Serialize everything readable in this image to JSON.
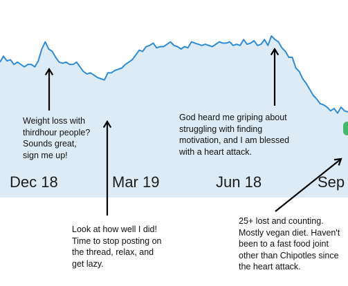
{
  "chart_data": {
    "type": "area",
    "title": "",
    "xlabel": "",
    "ylabel": "",
    "x_tick_labels": [
      "Dec 18",
      "Mar 19",
      "Jun 18",
      "Sep"
    ],
    "x": [
      0,
      5,
      10,
      15,
      20,
      25,
      30,
      35,
      40,
      45,
      50,
      55,
      60,
      65,
      70,
      75,
      80,
      85,
      90,
      95,
      100,
      105,
      110,
      115,
      120,
      125,
      130,
      135,
      140,
      145,
      150,
      155,
      160,
      165,
      170,
      175,
      180,
      185,
      190,
      195,
      200,
      205,
      210,
      215,
      220,
      225,
      230,
      235,
      240,
      245,
      250,
      255,
      260,
      265,
      270,
      275,
      280,
      285,
      290,
      295,
      300,
      305,
      310,
      315,
      320,
      325,
      330,
      335,
      340,
      345,
      350,
      355,
      360,
      365,
      370,
      375,
      380,
      385,
      390,
      395,
      400,
      405,
      410,
      415,
      420,
      425,
      430,
      435,
      440,
      445,
      450,
      455,
      460,
      465,
      470,
      475,
      480,
      485,
      490,
      495,
      500
    ],
    "y": [
      71,
      76,
      72,
      73,
      69,
      71,
      69,
      67,
      69,
      69,
      67,
      72,
      82,
      88,
      82,
      80,
      75,
      71,
      70,
      71,
      69,
      69,
      71,
      67,
      63,
      61,
      62,
      60,
      58,
      57,
      56,
      62,
      62,
      64,
      65,
      66,
      69,
      71,
      73,
      77,
      81,
      80,
      84,
      85,
      87,
      83,
      84,
      84,
      86,
      88,
      85,
      84,
      82,
      84,
      83,
      88,
      87,
      86,
      85,
      86,
      85,
      84,
      86,
      88,
      87,
      87,
      88,
      85,
      86,
      85,
      90,
      86,
      87,
      89,
      85,
      86,
      90,
      85,
      93,
      90,
      88,
      83,
      80,
      75,
      75,
      66,
      63,
      57,
      53,
      48,
      43,
      40,
      36,
      35,
      33,
      30,
      32,
      28,
      33,
      30,
      29
    ],
    "y_unit": "relative",
    "grid": false,
    "legend": "none",
    "colors": {
      "line": "#2e8bd6",
      "fill": "#dcebf6",
      "band": "#eef5fb",
      "arrow": "#000000",
      "marker": "#45b96a"
    }
  },
  "annotations": [
    {
      "text": "Weight loss with\nthirdhour people?\nSounds great,\nsign me up!"
    },
    {
      "text": "Look at how well I did!\nTime to stop posting on\nthe thread, relax, and\nget lazy."
    },
    {
      "text": "God heard me griping about\nstruggling with finding\nmotivation, and I am blessed\nwith a heart attack."
    },
    {
      "text": "25+ lost and counting.\nMostly vegan diet.  Haven't\nbeen to a fast food joint\nother than Chipotles since\nthe heart attack."
    }
  ]
}
